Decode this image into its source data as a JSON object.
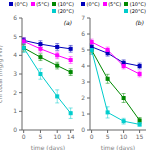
{
  "chart_data": [
    {
      "type": "line",
      "title": "(a)",
      "x_label": "time (days)",
      "y_label": "chl total (mg/g FW)",
      "x": [
        0,
        5,
        10,
        14
      ],
      "series": [
        {
          "name": "(0°C)",
          "color": "#0000bb",
          "marker": "square",
          "values": [
            4.8,
            4.6,
            4.45,
            4.35
          ],
          "errors": [
            0.15,
            0.18,
            0.18,
            0.18
          ]
        },
        {
          "name": "(5°C)",
          "color": "#ff00ff",
          "marker": "square",
          "values": [
            4.75,
            4.35,
            4.0,
            3.75
          ],
          "errors": [
            0.18,
            0.18,
            0.18,
            0.18
          ]
        },
        {
          "name": "(10°C)",
          "color": "#008800",
          "marker": "square",
          "values": [
            4.4,
            3.9,
            3.45,
            3.1
          ],
          "errors": [
            0.18,
            0.18,
            0.18,
            0.18
          ]
        },
        {
          "name": "(20°C)",
          "color": "#00cccc",
          "marker": "square",
          "values": [
            4.4,
            3.0,
            1.8,
            0.9
          ],
          "errors": [
            0.25,
            0.28,
            0.35,
            0.28
          ]
        }
      ],
      "xlim": [
        -0.5,
        15
      ],
      "ylim": [
        0,
        6
      ],
      "xticks": [
        0,
        5,
        10,
        14
      ],
      "yticks": [
        0,
        1,
        2,
        3,
        4,
        5,
        6
      ],
      "legend": "upper right"
    },
    {
      "type": "line",
      "title": "(b)",
      "x_label": "time (days)",
      "x": [
        0,
        5,
        10,
        15
      ],
      "series": [
        {
          "name": "(0°C)",
          "color": "#0000bb",
          "marker": "square",
          "values": [
            5.2,
            4.8,
            4.2,
            4.0
          ],
          "errors": [
            0.18,
            0.18,
            0.18,
            0.18
          ]
        },
        {
          "name": "(5°C)",
          "color": "#ff00ff",
          "marker": "square",
          "values": [
            5.5,
            5.0,
            4.0,
            3.5
          ],
          "errors": [
            0.18,
            0.18,
            0.18,
            0.18
          ]
        },
        {
          "name": "(10°C)",
          "color": "#008800",
          "marker": "square",
          "values": [
            5.0,
            3.2,
            2.0,
            0.6
          ],
          "errors": [
            0.18,
            0.28,
            0.28,
            0.18
          ]
        },
        {
          "name": "(20°C)",
          "color": "#00cccc",
          "marker": "square",
          "values": [
            5.0,
            1.1,
            0.55,
            0.35
          ],
          "errors": [
            0.28,
            0.35,
            0.18,
            0.12
          ]
        }
      ],
      "xlim": [
        -0.5,
        17
      ],
      "ylim": [
        0,
        7
      ],
      "xticks": [
        0,
        5,
        10,
        15
      ],
      "yticks": [
        0,
        1,
        2,
        3,
        4,
        5,
        6,
        7
      ],
      "legend": "upper right"
    }
  ]
}
